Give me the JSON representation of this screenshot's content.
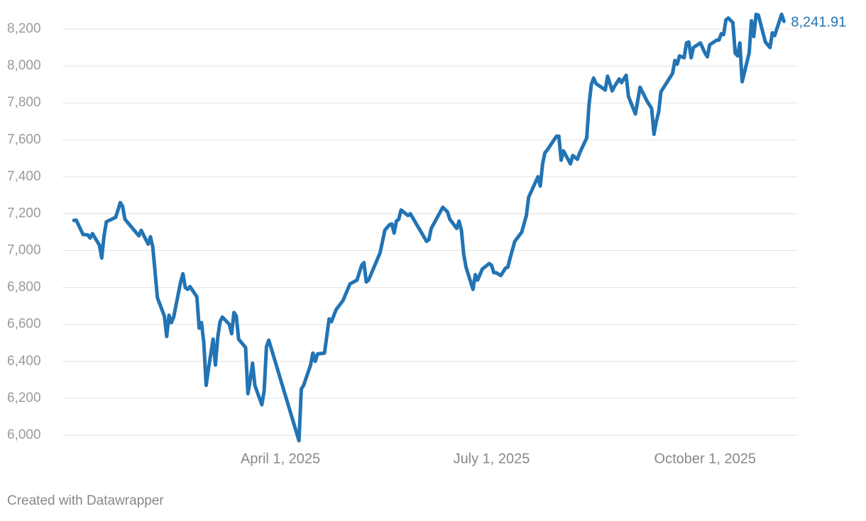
{
  "chart_data": {
    "type": "line",
    "credit": "Created with Datawrapper",
    "last_value_label": "8,241.91",
    "grid": true,
    "xlim": [
      "2024-12-29",
      "2025-11-10"
    ],
    "ylim": [
      5950,
      8300
    ],
    "xticks": [
      {
        "value": "2025-04-01",
        "label": "April 1, 2025"
      },
      {
        "value": "2025-07-01",
        "label": "July 1, 2025"
      },
      {
        "value": "2025-10-01",
        "label": "October 1, 2025"
      }
    ],
    "yticks": [
      {
        "value": 6000,
        "label": "6,000"
      },
      {
        "value": 6200,
        "label": "6,200"
      },
      {
        "value": 6400,
        "label": "6,400"
      },
      {
        "value": 6600,
        "label": "6,600"
      },
      {
        "value": 6800,
        "label": "6,800"
      },
      {
        "value": 7000,
        "label": "7,000"
      },
      {
        "value": 7200,
        "label": "7,200"
      },
      {
        "value": 7400,
        "label": "7,400"
      },
      {
        "value": 7600,
        "label": "7,600"
      },
      {
        "value": 7800,
        "label": "7,800"
      },
      {
        "value": 8000,
        "label": "8,000"
      },
      {
        "value": 8200,
        "label": "8,200"
      }
    ],
    "x": [
      "2025-01-02",
      "2025-01-03",
      "2025-01-06",
      "2025-01-08",
      "2025-01-09",
      "2025-01-10",
      "2025-01-13",
      "2025-01-14",
      "2025-01-15",
      "2025-01-16",
      "2025-01-20",
      "2025-01-22",
      "2025-01-23",
      "2025-01-24",
      "2025-01-30",
      "2025-01-31",
      "2025-02-03",
      "2025-02-04",
      "2025-02-05",
      "2025-02-07",
      "2025-02-10",
      "2025-02-11",
      "2025-02-12",
      "2025-02-13",
      "2025-02-14",
      "2025-02-17",
      "2025-02-18",
      "2025-02-19",
      "2025-02-20",
      "2025-02-21",
      "2025-02-24",
      "2025-02-25",
      "2025-02-26",
      "2025-02-27",
      "2025-02-28",
      "2025-03-01",
      "2025-03-03",
      "2025-03-04",
      "2025-03-05",
      "2025-03-06",
      "2025-03-07",
      "2025-03-10",
      "2025-03-11",
      "2025-03-12",
      "2025-03-13",
      "2025-03-14",
      "2025-03-17",
      "2025-03-18",
      "2025-03-19",
      "2025-03-20",
      "2025-03-21",
      "2025-03-24",
      "2025-03-25",
      "2025-03-26",
      "2025-03-27",
      "2025-04-09",
      "2025-04-10",
      "2025-04-11",
      "2025-04-14",
      "2025-04-15",
      "2025-04-16",
      "2025-04-17",
      "2025-04-20",
      "2025-04-22",
      "2025-04-23",
      "2025-04-25",
      "2025-04-28",
      "2025-04-29",
      "2025-05-01",
      "2025-05-04",
      "2025-05-06",
      "2025-05-07",
      "2025-05-08",
      "2025-05-09",
      "2025-05-14",
      "2025-05-16",
      "2025-05-18",
      "2025-05-19",
      "2025-05-20",
      "2025-05-21",
      "2025-05-22",
      "2025-05-23",
      "2025-05-26",
      "2025-05-27",
      "2025-06-03",
      "2025-06-04",
      "2025-06-05",
      "2025-06-10",
      "2025-06-12",
      "2025-06-13",
      "2025-06-16",
      "2025-06-17",
      "2025-06-18",
      "2025-06-19",
      "2025-06-20",
      "2025-06-23",
      "2025-06-24",
      "2025-06-25",
      "2025-06-27",
      "2025-06-30",
      "2025-07-01",
      "2025-07-02",
      "2025-07-03",
      "2025-07-05",
      "2025-07-07",
      "2025-07-08",
      "2025-07-09",
      "2025-07-11",
      "2025-07-14",
      "2025-07-16",
      "2025-07-17",
      "2025-07-21",
      "2025-07-22",
      "2025-07-23",
      "2025-07-24",
      "2025-07-25",
      "2025-07-29",
      "2025-07-30",
      "2025-07-31",
      "2025-08-01",
      "2025-08-04",
      "2025-08-05",
      "2025-08-07",
      "2025-08-08",
      "2025-08-11",
      "2025-08-12",
      "2025-08-13",
      "2025-08-14",
      "2025-08-15",
      "2025-08-19",
      "2025-08-20",
      "2025-08-22",
      "2025-08-23",
      "2025-08-25",
      "2025-08-26",
      "2025-08-28",
      "2025-08-29",
      "2025-09-01",
      "2025-09-03",
      "2025-09-06",
      "2025-09-08",
      "2025-09-09",
      "2025-09-10",
      "2025-09-11",
      "2025-09-12",
      "2025-09-17",
      "2025-09-18",
      "2025-09-19",
      "2025-09-20",
      "2025-09-22",
      "2025-09-23",
      "2025-09-24",
      "2025-09-25",
      "2025-09-26",
      "2025-09-29",
      "2025-10-01",
      "2025-10-02",
      "2025-10-03",
      "2025-10-06",
      "2025-10-07",
      "2025-10-08",
      "2025-10-09",
      "2025-10-10",
      "2025-10-11",
      "2025-10-13",
      "2025-10-14",
      "2025-10-15",
      "2025-10-16",
      "2025-10-17",
      "2025-10-20",
      "2025-10-21",
      "2025-10-22",
      "2025-10-23",
      "2025-10-24",
      "2025-10-27",
      "2025-10-29",
      "2025-10-30",
      "2025-10-31",
      "2025-11-03",
      "2025-11-04"
    ],
    "series": [
      {
        "color": "#2274b4",
        "values": [
          7164,
          7165,
          7087,
          7085,
          7068,
          7092,
          7030,
          6960,
          7080,
          7156,
          7180,
          7260,
          7240,
          7170,
          7080,
          7110,
          7035,
          7075,
          7020,
          6745,
          6645,
          6535,
          6650,
          6610,
          6640,
          6830,
          6875,
          6800,
          6790,
          6805,
          6750,
          6580,
          6610,
          6500,
          6270,
          6360,
          6520,
          6380,
          6530,
          6615,
          6640,
          6600,
          6550,
          6665,
          6645,
          6520,
          6475,
          6225,
          6300,
          6390,
          6270,
          6165,
          6240,
          6480,
          6515,
          5970,
          6250,
          6270,
          6380,
          6445,
          6400,
          6440,
          6445,
          6630,
          6615,
          6680,
          6730,
          6760,
          6820,
          6840,
          6920,
          6935,
          6830,
          6840,
          6990,
          7110,
          7140,
          7145,
          7095,
          7160,
          7170,
          7220,
          7190,
          7200,
          7050,
          7060,
          7120,
          7235,
          7210,
          7170,
          7120,
          7160,
          7110,
          6980,
          6910,
          6790,
          6870,
          6840,
          6900,
          6930,
          6920,
          6880,
          6880,
          6865,
          6905,
          6910,
          6960,
          7050,
          7100,
          7190,
          7290,
          7400,
          7350,
          7470,
          7530,
          7545,
          7620,
          7620,
          7490,
          7540,
          7470,
          7515,
          7495,
          7530,
          7610,
          7790,
          7900,
          7935,
          7905,
          7870,
          7945,
          7865,
          7890,
          7930,
          7910,
          7950,
          7835,
          7740,
          7885,
          7810,
          7770,
          7630,
          7700,
          7750,
          7860,
          7960,
          8030,
          8010,
          8055,
          8045,
          8125,
          8130,
          8045,
          8100,
          8125,
          8070,
          8050,
          8115,
          8140,
          8140,
          8175,
          8170,
          8250,
          8260,
          8235,
          8070,
          8055,
          8125,
          7915,
          8070,
          8245,
          8160,
          8280,
          8275,
          8130,
          8100,
          8180,
          8165,
          8280,
          8241.91
        ]
      }
    ]
  }
}
